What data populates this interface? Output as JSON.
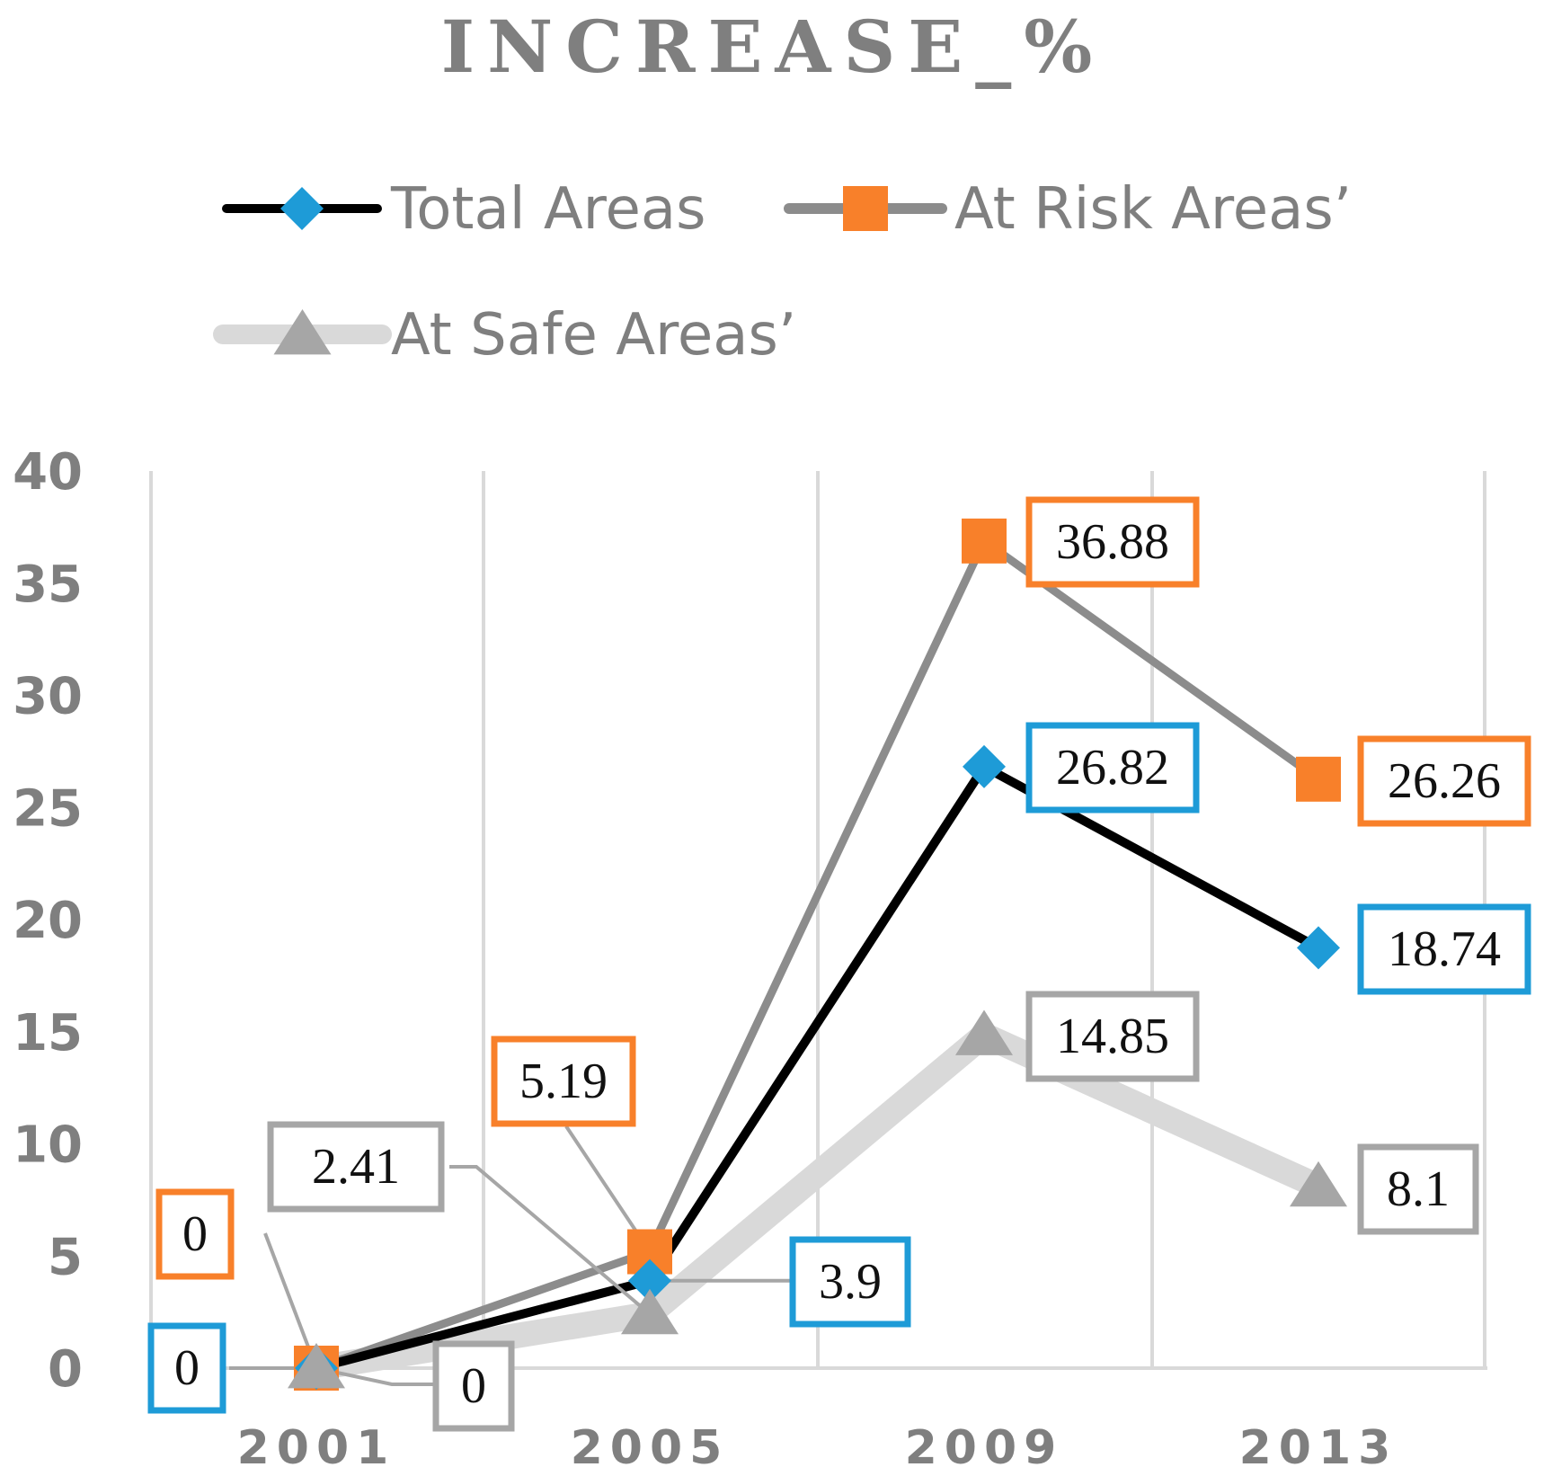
{
  "chart_data": {
    "type": "line",
    "title": "INCREASE_%",
    "xlabel": "",
    "ylabel": "",
    "categories": [
      "2001",
      "2005",
      "2009",
      "2013"
    ],
    "ylim": [
      0,
      40
    ],
    "yticks": [
      0,
      5,
      10,
      15,
      20,
      25,
      30,
      35,
      40
    ],
    "grid": "vertical",
    "legend_position": "top",
    "series": [
      {
        "name": "Total Areas",
        "values": [
          0,
          3.9,
          26.82,
          18.74
        ],
        "labels": [
          "0",
          "3.9",
          "26.82",
          "18.74"
        ],
        "line_color": "#000000",
        "marker": "diamond",
        "marker_color": "#1e9bd7",
        "label_border": "#1e9bd7"
      },
      {
        "name": "At Risk Areas’",
        "values": [
          0,
          5.19,
          36.88,
          26.26
        ],
        "labels": [
          "0",
          "5.19",
          "36.88",
          "26.26"
        ],
        "line_color": "#8c8c8c",
        "marker": "square",
        "marker_color": "#f8802a",
        "label_border": "#f8802a"
      },
      {
        "name": "At Safe Areas’",
        "values": [
          0,
          2.41,
          14.85,
          8.1
        ],
        "labels": [
          "0",
          "2.41",
          "14.85",
          "8.1"
        ],
        "line_color": "#d9d9d9",
        "marker": "triangle",
        "marker_color": "#a6a6a6",
        "label_border": "#a6a6a6"
      }
    ]
  }
}
